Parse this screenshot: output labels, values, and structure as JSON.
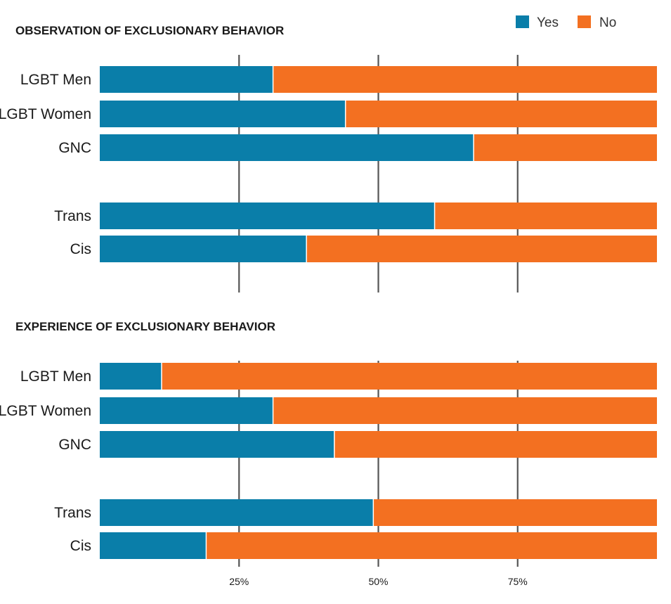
{
  "legend": {
    "items": [
      {
        "label": "Yes",
        "color": "#0a7ea9"
      },
      {
        "label": "No",
        "color": "#f37021"
      }
    ],
    "placement": "top-right"
  },
  "x_ticks": [
    {
      "value": 25,
      "label": "25%"
    },
    {
      "value": 50,
      "label": "50%"
    },
    {
      "value": 75,
      "label": "75%"
    }
  ],
  "chart_data": [
    {
      "type": "bar",
      "stacked": true,
      "orientation": "horizontal",
      "title": "OBSERVATION OF EXCLUSIONARY BEHAVIOR",
      "categories": [
        "LGBT Men",
        "LGBT Women",
        "GNC",
        "Trans",
        "Cis"
      ],
      "series": [
        {
          "name": "Yes",
          "color": "#0a7ea9",
          "values": [
            31,
            44,
            67,
            60,
            37
          ]
        },
        {
          "name": "No",
          "color": "#f37021",
          "values": [
            69,
            56,
            33,
            40,
            63
          ]
        }
      ],
      "xlim": [
        0,
        100
      ],
      "grid": "vertical at 25, 50, 75"
    },
    {
      "type": "bar",
      "stacked": true,
      "orientation": "horizontal",
      "title": "EXPERIENCE OF EXCLUSIONARY BEHAVIOR",
      "categories": [
        "LGBT Men",
        "LGBT Women",
        "GNC",
        "Trans",
        "Cis"
      ],
      "series": [
        {
          "name": "Yes",
          "color": "#0a7ea9",
          "values": [
            11,
            31,
            42,
            49,
            19
          ]
        },
        {
          "name": "No",
          "color": "#f37021",
          "values": [
            89,
            69,
            58,
            51,
            81
          ]
        }
      ],
      "xlim": [
        0,
        100
      ],
      "grid": "vertical at 25, 50, 75"
    }
  ]
}
